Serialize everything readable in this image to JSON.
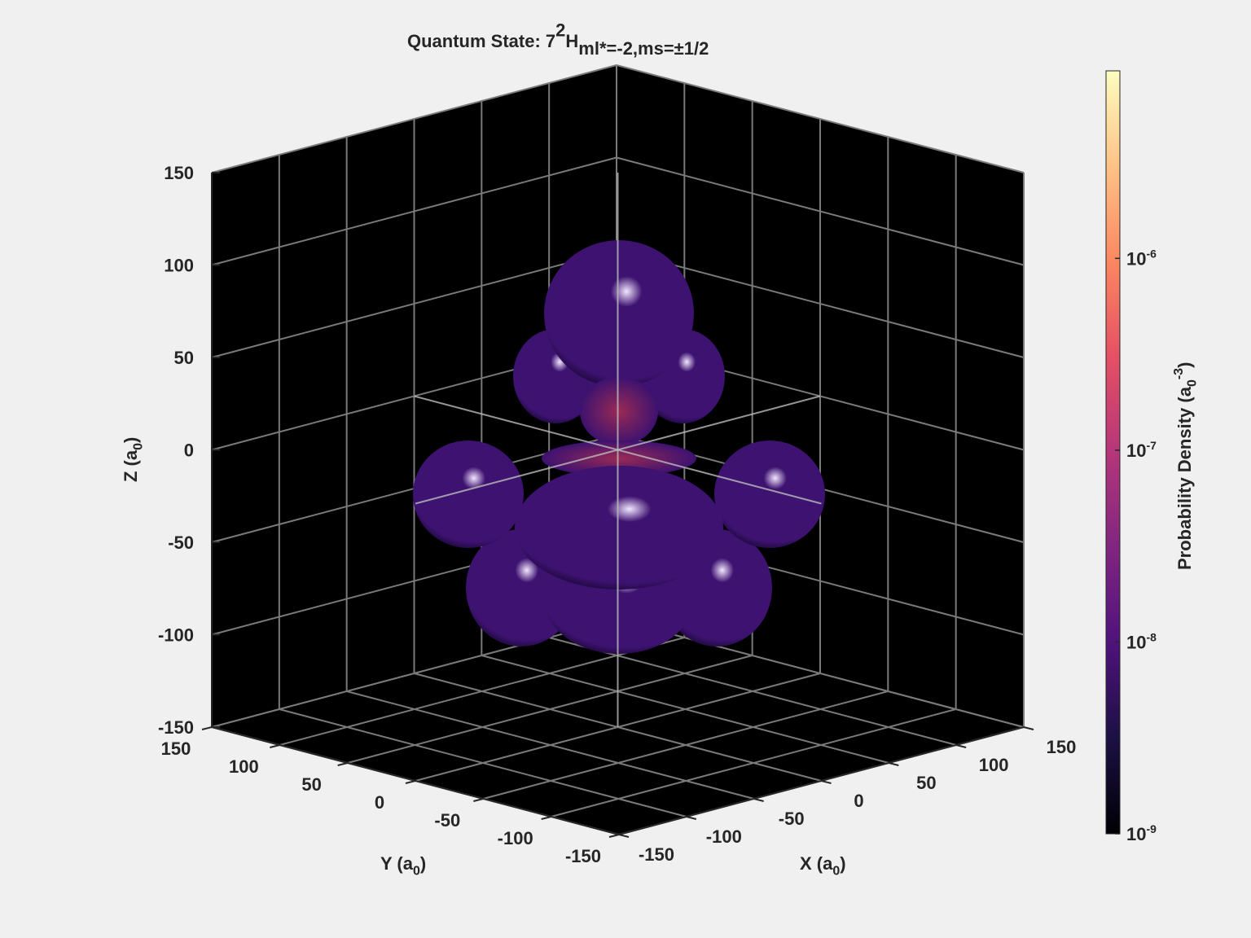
{
  "chart_data": {
    "type": "isosurface",
    "title": {
      "text": "Quantum State: 7",
      "superscript": "2",
      "symbol": "H",
      "subscript": "ml*=-2,ms=±1/2"
    },
    "xlabel": {
      "text": "X (a",
      "subscript": "0",
      "end": ")"
    },
    "ylabel": {
      "text": "Y (a",
      "subscript": "0",
      "end": ")"
    },
    "zlabel": {
      "text": "Z (a",
      "subscript": "0",
      "end": ")"
    },
    "xlim": [
      -150,
      150
    ],
    "xticks": [
      -150,
      -100,
      -50,
      0,
      50,
      100,
      150
    ],
    "ylim": [
      -150,
      150
    ],
    "yticks": [
      -150,
      -100,
      -50,
      0,
      50,
      100,
      150
    ],
    "zlim": [
      -150,
      150
    ],
    "zticks": [
      -150,
      -100,
      -50,
      0,
      50,
      100,
      150
    ],
    "grid": true,
    "background": "#000000",
    "surface_color": "#3d1270",
    "colorbar": {
      "label": {
        "text": "Probability Density (a",
        "subscript": "0",
        "superscript": "-3",
        "end": ")"
      },
      "scale": "log",
      "lim": [
        1e-09,
        9.5e-06
      ],
      "ticks": [
        {
          "value": 1e-09,
          "label": "10",
          "exponent": "-9"
        },
        {
          "value": 1e-08,
          "label": "10",
          "exponent": "-8"
        },
        {
          "value": 1e-07,
          "label": "10",
          "exponent": "-7"
        },
        {
          "value": 1e-06,
          "label": "10",
          "exponent": "-6"
        }
      ],
      "colormap": [
        "#000004",
        "#1c1044",
        "#4f127b",
        "#812581",
        "#b5367a",
        "#e55064",
        "#fb8761",
        "#fec287",
        "#fcfdbf"
      ]
    }
  }
}
